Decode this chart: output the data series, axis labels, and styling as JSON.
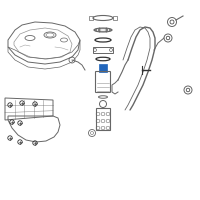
{
  "bg_color": "#ffffff",
  "line_color": "#666666",
  "dark_color": "#333333",
  "highlight_color": "#2266bb",
  "fig_width": 2.0,
  "fig_height": 2.0,
  "dpi": 100
}
